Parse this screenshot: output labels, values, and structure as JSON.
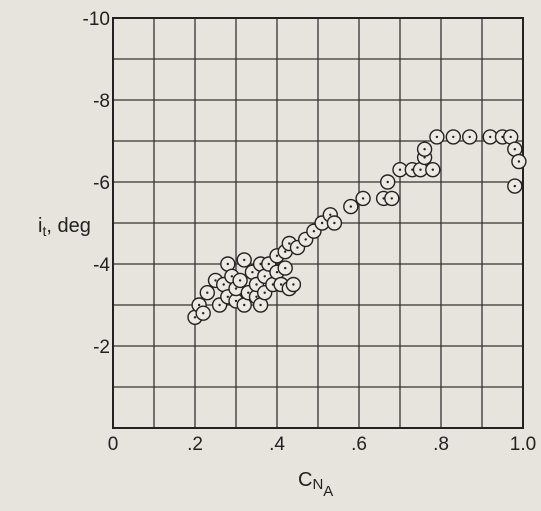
{
  "chart_data": {
    "type": "scatter",
    "xlabel_main": "C",
    "xlabel_sub": "N",
    "xlabel_subsub": "A",
    "ylabel": "i_t, deg",
    "ylabel_main": "i",
    "ylabel_sub": "t",
    "ylabel_rest": ", deg",
    "xlim": [
      0,
      1.0
    ],
    "ylim": [
      0,
      -10
    ],
    "x_ticks": [
      {
        "value": 0,
        "label": "0"
      },
      {
        "value": 0.2,
        "label": ".2"
      },
      {
        "value": 0.4,
        "label": ".4"
      },
      {
        "value": 0.6,
        "label": ".6"
      },
      {
        "value": 0.8,
        "label": ".8"
      },
      {
        "value": 1.0,
        "label": "1.0"
      }
    ],
    "y_ticks": [
      {
        "value": -2,
        "label": "-2"
      },
      {
        "value": -4,
        "label": "-4"
      },
      {
        "value": -6,
        "label": "-6"
      },
      {
        "value": -8,
        "label": "-8"
      },
      {
        "value": -10,
        "label": "-10"
      }
    ],
    "grid": true,
    "grid_step_x": 0.1,
    "grid_step_y": -1,
    "series": [
      {
        "points": [
          [
            0.2,
            -2.7
          ],
          [
            0.21,
            -3.0
          ],
          [
            0.22,
            -2.8
          ],
          [
            0.23,
            -3.3
          ],
          [
            0.25,
            -3.6
          ],
          [
            0.26,
            -3.0
          ],
          [
            0.27,
            -3.5
          ],
          [
            0.28,
            -3.2
          ],
          [
            0.28,
            -4.0
          ],
          [
            0.29,
            -3.7
          ],
          [
            0.3,
            -3.1
          ],
          [
            0.3,
            -3.4
          ],
          [
            0.31,
            -3.6
          ],
          [
            0.32,
            -3.0
          ],
          [
            0.32,
            -4.1
          ],
          [
            0.33,
            -3.3
          ],
          [
            0.34,
            -3.8
          ],
          [
            0.35,
            -3.2
          ],
          [
            0.35,
            -3.5
          ],
          [
            0.36,
            -4.0
          ],
          [
            0.36,
            -3.0
          ],
          [
            0.37,
            -3.3
          ],
          [
            0.37,
            -3.7
          ],
          [
            0.38,
            -4.0
          ],
          [
            0.39,
            -3.5
          ],
          [
            0.4,
            -3.8
          ],
          [
            0.4,
            -4.2
          ],
          [
            0.41,
            -3.5
          ],
          [
            0.42,
            -4.3
          ],
          [
            0.42,
            -3.9
          ],
          [
            0.43,
            -4.5
          ],
          [
            0.43,
            -3.4
          ],
          [
            0.44,
            -3.5
          ],
          [
            0.45,
            -4.4
          ],
          [
            0.47,
            -4.6
          ],
          [
            0.49,
            -4.8
          ],
          [
            0.51,
            -5.0
          ],
          [
            0.53,
            -5.2
          ],
          [
            0.54,
            -5.0
          ],
          [
            0.58,
            -5.4
          ],
          [
            0.61,
            -5.6
          ],
          [
            0.66,
            -5.6
          ],
          [
            0.67,
            -6.0
          ],
          [
            0.68,
            -5.6
          ],
          [
            0.7,
            -6.3
          ],
          [
            0.73,
            -6.3
          ],
          [
            0.75,
            -6.3
          ],
          [
            0.76,
            -6.6
          ],
          [
            0.76,
            -6.8
          ],
          [
            0.78,
            -6.3
          ],
          [
            0.79,
            -7.1
          ],
          [
            0.83,
            -7.1
          ],
          [
            0.87,
            -7.1
          ],
          [
            0.92,
            -7.1
          ],
          [
            0.95,
            -7.1
          ],
          [
            0.97,
            -7.1
          ],
          [
            0.98,
            -6.8
          ],
          [
            0.99,
            -6.5
          ],
          [
            0.98,
            -5.9
          ]
        ]
      }
    ]
  }
}
